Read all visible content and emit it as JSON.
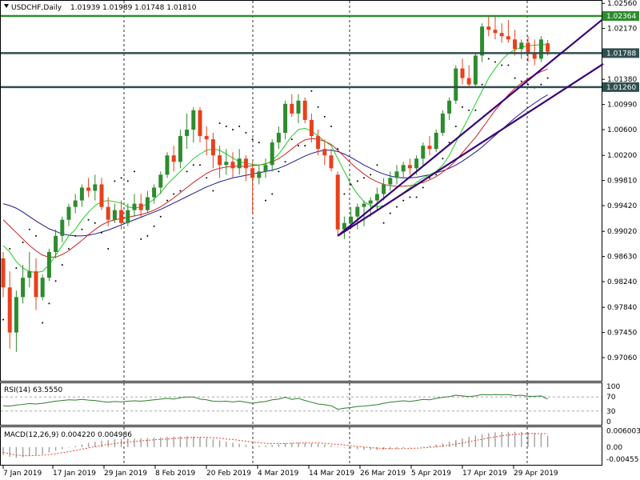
{
  "header": {
    "symbol": "USDCHF,Daily",
    "ohlc": "1.01939 1.01989 1.01748 1.01810"
  },
  "colors": {
    "background": "#ffffff",
    "grid": "#000000",
    "bull": "#2e8b2e",
    "bear": "#e8401c",
    "level": "#2f4f4f",
    "resistance": "#2e8b2e",
    "trend": "#3a007a",
    "ma_fast": "#22cc22",
    "ma_mid": "#cc2222",
    "ma_slow": "#1a1a8c",
    "sar": "#000000",
    "macd_line": "#a0a0a0"
  },
  "chart_data": [
    {
      "type": "candlestick",
      "title": "USDCHF,Daily",
      "ylim": [
        0.967,
        1.026
      ],
      "y_ticks": [
        "1.02560",
        "1.02170",
        "1.01380",
        "1.00990",
        "1.00600",
        "1.00200",
        "0.99810",
        "0.99420",
        "0.99020",
        "0.98630",
        "0.98240",
        "0.97840",
        "0.97450",
        "0.97060"
      ],
      "x_ticks": [
        "7 Jan 2019",
        "17 Jan 2019",
        "29 Jan 2019",
        "8 Feb 2019",
        "20 Feb 2019",
        "4 Mar 2019",
        "14 Mar 2019",
        "26 Mar 2019",
        "5 Apr 2019",
        "17 Apr 2019",
        "29 Apr 2019"
      ],
      "levels": [
        {
          "label": "1.02364",
          "value": 1.02364,
          "style": "resistance"
        },
        {
          "label": "1.01788",
          "value": 1.01788,
          "style": "level"
        },
        {
          "label": "1.01260",
          "value": 1.0126,
          "style": "level"
        }
      ],
      "ohlc": [
        [
          0.986,
          0.987,
          0.98,
          0.9815
        ],
        [
          0.9815,
          0.984,
          0.972,
          0.9745
        ],
        [
          0.9745,
          0.981,
          0.9715,
          0.98
        ],
        [
          0.98,
          0.985,
          0.979,
          0.983
        ],
        [
          0.983,
          0.987,
          0.9815,
          0.984
        ],
        [
          0.984,
          0.986,
          0.978,
          0.98
        ],
        [
          0.98,
          0.9835,
          0.9795,
          0.983
        ],
        [
          0.983,
          0.9875,
          0.9825,
          0.987
        ],
        [
          0.987,
          0.9905,
          0.986,
          0.9895
        ],
        [
          0.9895,
          0.9925,
          0.9885,
          0.992
        ],
        [
          0.992,
          0.9945,
          0.991,
          0.994
        ],
        [
          0.994,
          0.996,
          0.993,
          0.995
        ],
        [
          0.995,
          0.9975,
          0.994,
          0.997
        ],
        [
          0.997,
          0.9985,
          0.9955,
          0.9965
        ],
        [
          0.9965,
          0.999,
          0.995,
          0.9975
        ],
        [
          0.9975,
          0.9985,
          0.9935,
          0.994
        ],
        [
          0.994,
          0.9955,
          0.991,
          0.992
        ],
        [
          0.992,
          0.9945,
          0.9915,
          0.9935
        ],
        [
          0.9935,
          0.995,
          0.9905,
          0.9915
        ],
        [
          0.9915,
          0.9945,
          0.991,
          0.9935
        ],
        [
          0.9935,
          0.996,
          0.9925,
          0.9945
        ],
        [
          0.9945,
          0.996,
          0.9925,
          0.9935
        ],
        [
          0.9935,
          0.9965,
          0.993,
          0.9955
        ],
        [
          0.9955,
          0.9975,
          0.9945,
          0.997
        ],
        [
          0.997,
          0.9995,
          0.996,
          0.999
        ],
        [
          0.999,
          1.0025,
          0.9985,
          1.002
        ],
        [
          1.002,
          1.0035,
          0.9995,
          1.001
        ],
        [
          1.001,
          1.006,
          1.0,
          1.005
        ],
        [
          1.005,
          1.0085,
          1.003,
          1.006
        ],
        [
          1.006,
          1.0095,
          1.004,
          1.009
        ],
        [
          1.009,
          1.0095,
          1.004,
          1.005
        ],
        [
          1.005,
          1.0065,
          1.002,
          1.0045
        ],
        [
          1.0045,
          1.0055,
          1.0,
          1.002
        ],
        [
          1.002,
          1.0035,
          0.9985,
          1.0005
        ],
        [
          1.0005,
          1.003,
          0.999,
          1.001
        ],
        [
          1.001,
          1.0025,
          0.9985,
          1.0
        ],
        [
          1.0,
          1.003,
          0.999,
          1.0015
        ],
        [
          1.0015,
          1.002,
          0.998,
          1.0
        ],
        [
          1.0,
          1.001,
          0.993,
          0.9985
        ],
        [
          0.9985,
          1.0005,
          0.9975,
          0.9995
        ],
        [
          0.9995,
          1.0015,
          0.9985,
          1.0005
        ],
        [
          1.0005,
          1.0045,
          0.9995,
          1.004
        ],
        [
          1.004,
          1.0065,
          1.003,
          1.0055
        ],
        [
          1.0055,
          1.0105,
          1.0045,
          1.01
        ],
        [
          1.01,
          1.0115,
          1.008,
          1.0085
        ],
        [
          1.0085,
          1.0115,
          1.007,
          1.0105
        ],
        [
          1.0105,
          1.011,
          1.007,
          1.0075
        ],
        [
          1.0075,
          1.0085,
          1.004,
          1.005
        ],
        [
          1.005,
          1.006,
          1.002,
          1.003
        ],
        [
          1.003,
          1.0045,
          1.0005,
          1.002
        ],
        [
          1.002,
          1.003,
          0.9995,
          1.0
        ],
        [
          0.999,
          0.9995,
          0.9895,
          0.9905
        ],
        [
          0.9905,
          0.9925,
          0.989,
          0.9915
        ],
        [
          0.9915,
          0.994,
          0.9905,
          0.9925
        ],
        [
          0.9925,
          0.9945,
          0.9905,
          0.994
        ],
        [
          0.994,
          0.995,
          0.991,
          0.9945
        ],
        [
          0.9945,
          0.9955,
          0.9925,
          0.995
        ],
        [
          0.995,
          0.997,
          0.9935,
          0.996
        ],
        [
          0.996,
          0.9985,
          0.995,
          0.9975
        ],
        [
          0.9975,
          0.9995,
          0.9965,
          0.9985
        ],
        [
          0.9985,
          1.0005,
          0.9975,
          0.9995
        ],
        [
          0.9995,
          1.001,
          0.9985,
          1.0005
        ],
        [
          1.0005,
          1.0015,
          0.999,
          1.0
        ],
        [
          1.0,
          1.002,
          0.999,
          1.0015
        ],
        [
          1.0015,
          1.004,
          1.0005,
          1.0035
        ],
        [
          1.0035,
          1.005,
          1.002,
          1.003
        ],
        [
          1.003,
          1.006,
          1.0025,
          1.0055
        ],
        [
          1.0055,
          1.009,
          1.005,
          1.0085
        ],
        [
          1.0085,
          1.011,
          1.0075,
          1.0105
        ],
        [
          1.0105,
          1.016,
          1.01,
          1.0155
        ],
        [
          1.0155,
          1.017,
          1.013,
          1.014
        ],
        [
          1.014,
          1.016,
          1.0125,
          1.013
        ],
        [
          1.013,
          1.018,
          1.0125,
          1.0175
        ],
        [
          1.0175,
          1.0225,
          1.0165,
          1.022
        ],
        [
          1.022,
          1.0235,
          1.0205,
          1.0215
        ],
        [
          1.0215,
          1.0236,
          1.02,
          1.021
        ],
        [
          1.021,
          1.0225,
          1.0195,
          1.0205
        ],
        [
          1.0205,
          1.023,
          1.0195,
          1.02
        ],
        [
          1.02,
          1.0215,
          1.0175,
          1.0185
        ],
        [
          1.0185,
          1.02,
          1.017,
          1.0195
        ],
        [
          1.0195,
          1.0205,
          1.0165,
          1.018
        ],
        [
          1.018,
          1.02,
          1.016,
          1.017
        ],
        [
          1.017,
          1.0205,
          1.0165,
          1.02
        ],
        [
          1.0194,
          1.0199,
          1.0175,
          1.0181
        ]
      ],
      "ma_fast": [
        0.988,
        0.987,
        0.9855,
        0.9845,
        0.984,
        0.9838,
        0.984,
        0.985,
        0.9865,
        0.988,
        0.9895,
        0.9905,
        0.992,
        0.9932,
        0.9942,
        0.9948,
        0.995,
        0.9948,
        0.9946,
        0.994,
        0.9938,
        0.994,
        0.9945,
        0.9952,
        0.9962,
        0.9975,
        0.9985,
        0.9995,
        1.0005,
        1.0015,
        1.0022,
        1.0028,
        1.003,
        1.0028,
        1.0022,
        1.0016,
        1.001,
        1.0008,
        1.0006,
        1.0005,
        1.0006,
        1.0012,
        1.0022,
        1.0036,
        1.005,
        1.006,
        1.0062,
        1.0058,
        1.005,
        1.0042,
        1.0035,
        1.0015,
        0.9995,
        0.9975,
        0.996,
        0.9948,
        0.9942,
        0.994,
        0.9942,
        0.9948,
        0.9955,
        0.9962,
        0.997,
        0.9978,
        0.9985,
        0.999,
        0.9995,
        1.0005,
        1.002,
        1.004,
        1.006,
        1.008,
        1.01,
        1.012,
        1.014,
        1.0155,
        1.0168,
        1.0178,
        1.0184,
        1.0188,
        1.019,
        1.0191,
        1.0192,
        1.0192
      ],
      "ma_mid": [
        0.992,
        0.991,
        0.99,
        0.989,
        0.988,
        0.9872,
        0.9865,
        0.9862,
        0.9862,
        0.9866,
        0.9872,
        0.988,
        0.9888,
        0.9897,
        0.9905,
        0.9912,
        0.9917,
        0.992,
        0.9922,
        0.9924,
        0.9926,
        0.9928,
        0.9931,
        0.9935,
        0.994,
        0.9947,
        0.9954,
        0.9962,
        0.997,
        0.9978,
        0.9985,
        0.9992,
        0.9997,
        1.0,
        1.0002,
        1.0003,
        1.0003,
        1.0003,
        1.0004,
        1.0005,
        1.0007,
        1.001,
        1.0015,
        1.0022,
        1.003,
        1.0038,
        1.0044,
        1.0046,
        1.0045,
        1.0042,
        1.0037,
        1.0028,
        1.0018,
        1.0008,
        0.9999,
        0.9991,
        0.9984,
        0.9979,
        0.9975,
        0.9973,
        0.9972,
        0.9972,
        0.9973,
        0.9975,
        0.9978,
        0.9982,
        0.9987,
        0.9994,
        1.0002,
        1.0012,
        1.0024,
        1.0036,
        1.0048,
        1.0062,
        1.0076,
        1.009,
        1.0102,
        1.0114,
        1.0124,
        1.0132,
        1.0139,
        1.0145,
        1.015,
        1.0154
      ],
      "ma_slow": [
        0.9945,
        0.9942,
        0.9938,
        0.9932,
        0.9925,
        0.9918,
        0.9912,
        0.9906,
        0.9902,
        0.9898,
        0.9896,
        0.9895,
        0.9895,
        0.9896,
        0.9898,
        0.9901,
        0.9904,
        0.9908,
        0.9912,
        0.9916,
        0.992,
        0.9924,
        0.9928,
        0.9932,
        0.9936,
        0.9941,
        0.9946,
        0.9951,
        0.9956,
        0.9961,
        0.9966,
        0.9971,
        0.9975,
        0.9979,
        0.9982,
        0.9985,
        0.9987,
        0.9989,
        0.9991,
        0.9993,
        0.9995,
        0.9997,
        1.0,
        1.0004,
        1.0009,
        1.0014,
        1.0019,
        1.0023,
        1.0026,
        1.0028,
        1.0028,
        1.0026,
        1.0022,
        1.0017,
        1.0011,
        1.0005,
        1.0,
        0.9995,
        0.9991,
        0.9988,
        0.9986,
        0.9985,
        0.9985,
        0.9986,
        0.9988,
        0.999,
        0.9993,
        0.9996,
        1.0,
        1.0005,
        1.0011,
        1.0018,
        1.0025,
        1.0033,
        1.0042,
        1.0051,
        1.006,
        1.0069,
        1.0078,
        1.0086,
        1.0094,
        1.0101,
        1.0108,
        1.0114
      ],
      "trendlines": [
        {
          "from": [
            51,
            0.9895
          ],
          "to": [
            90,
            1.0232
          ]
        },
        {
          "from": [
            51,
            0.9895
          ],
          "to": [
            90,
            1.0162
          ]
        }
      ]
    },
    {
      "type": "line",
      "name": "RSI(14)",
      "label": "RSI(14) 63.5550",
      "ylim": [
        0,
        100
      ],
      "y_ticks": [
        "100",
        "70",
        "30",
        "0"
      ],
      "values": [
        45,
        44,
        47,
        49,
        51,
        50,
        52,
        55,
        58,
        60,
        62,
        61,
        63,
        61,
        60,
        57,
        55,
        57,
        56,
        58,
        59,
        58,
        60,
        62,
        64,
        66,
        64,
        68,
        70,
        70,
        64,
        62,
        58,
        57,
        58,
        56,
        58,
        55,
        52,
        55,
        57,
        62,
        64,
        69,
        63,
        66,
        60,
        55,
        50,
        48,
        45,
        35,
        38,
        40,
        43,
        44,
        46,
        48,
        52,
        55,
        57,
        59,
        57,
        60,
        63,
        62,
        66,
        69,
        71,
        75,
        73,
        71,
        73,
        77,
        76,
        77,
        76,
        77,
        74,
        75,
        72,
        72,
        73,
        64
      ]
    },
    {
      "type": "bar",
      "name": "MACD(12,26,9)",
      "label": "MACD(12,26,9) 0.004220 0.004986",
      "ylim": [
        -0.006,
        0.0068
      ],
      "y_ticks": [
        "0.006003",
        "0.00",
        "-0.00455"
      ],
      "values": [
        -0.003,
        -0.0036,
        -0.004,
        -0.0038,
        -0.0034,
        -0.003,
        -0.0026,
        -0.002,
        -0.0014,
        -0.0008,
        -0.0002,
        0.0004,
        0.001,
        0.0016,
        0.002,
        0.0024,
        0.0026,
        0.0028,
        0.003,
        0.0031,
        0.0032,
        0.0033,
        0.0034,
        0.0035,
        0.0036,
        0.0038,
        0.0039,
        0.004,
        0.004,
        0.0039,
        0.0037,
        0.0034,
        0.003,
        0.0025,
        0.002,
        0.0016,
        0.0012,
        0.0009,
        0.0006,
        0.0005,
        0.0006,
        0.0008,
        0.0011,
        0.0014,
        0.0016,
        0.0017,
        0.0016,
        0.0014,
        0.0012,
        0.0009,
        0.0006,
        0.0002,
        -0.0002,
        -0.0005,
        -0.0008,
        -0.001,
        -0.0011,
        -0.0011,
        -0.001,
        -0.0008,
        -0.0006,
        -0.0004,
        -0.0002,
        0.0,
        0.0002,
        0.0005,
        0.0009,
        0.0014,
        0.002,
        0.0026,
        0.0032,
        0.0038,
        0.0043,
        0.0048,
        0.0052,
        0.0055,
        0.0056,
        0.0057,
        0.0057,
        0.0056,
        0.0055,
        0.0053,
        0.005,
        0.0042
      ],
      "signal": [
        -0.002,
        -0.0025,
        -0.003,
        -0.0032,
        -0.0032,
        -0.0031,
        -0.003,
        -0.0028,
        -0.0025,
        -0.0021,
        -0.0017,
        -0.0013,
        -0.0008,
        -0.0003,
        0.0001,
        0.0006,
        0.001,
        0.0013,
        0.0016,
        0.0019,
        0.0021,
        0.0023,
        0.0025,
        0.0027,
        0.0029,
        0.003,
        0.0032,
        0.0034,
        0.0035,
        0.0036,
        0.0036,
        0.0036,
        0.0035,
        0.0033,
        0.003,
        0.0028,
        0.0025,
        0.0022,
        0.0019,
        0.0016,
        0.0014,
        0.0013,
        0.0013,
        0.0013,
        0.0014,
        0.0015,
        0.0015,
        0.0015,
        0.0015,
        0.0014,
        0.0012,
        0.001,
        0.0008,
        0.0005,
        0.0002,
        0.0,
        -0.0002,
        -0.0004,
        -0.0005,
        -0.0006,
        -0.0006,
        -0.0006,
        -0.0005,
        -0.0004,
        -0.0003,
        -0.0001,
        0.0001,
        0.0004,
        0.0007,
        0.0011,
        0.0015,
        0.002,
        0.0025,
        0.0029,
        0.0034,
        0.0038,
        0.0042,
        0.0045,
        0.0047,
        0.0049,
        0.005,
        0.005,
        0.005,
        0.005
      ]
    }
  ]
}
